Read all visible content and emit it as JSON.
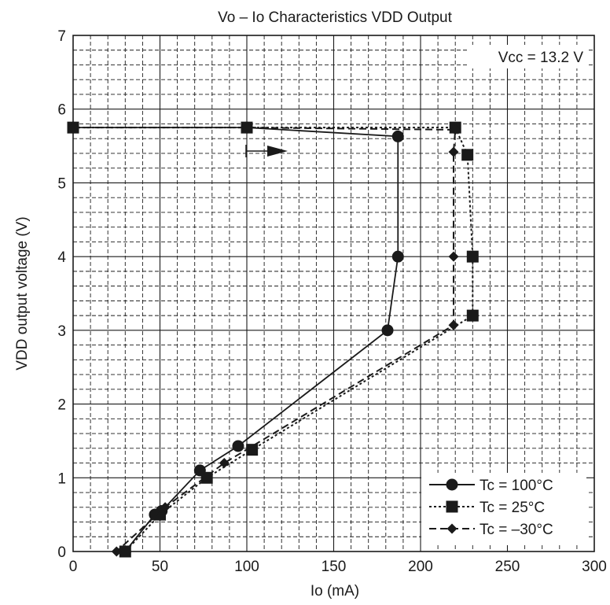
{
  "chart_data": {
    "type": "line",
    "title": "Vo – Io Characteristics   VDD Output",
    "xlabel": "Io   (mA)",
    "ylabel": "VDD output voltage   (V)",
    "xlim": [
      0,
      300
    ],
    "ylim": [
      0,
      7
    ],
    "x_ticks": [
      "0",
      "50",
      "100",
      "150",
      "200",
      "250",
      "300"
    ],
    "y_ticks": [
      "0",
      "1",
      "2",
      "3",
      "4",
      "5",
      "6",
      "7"
    ],
    "grid": true,
    "legend_position": "bottom-right",
    "annotations": [
      {
        "text": "Vcc = 13.2 V"
      }
    ],
    "series": [
      {
        "name": "Tc = 100°C",
        "line_style": "solid",
        "marker": "circle",
        "points": [
          [
            0,
            5.75
          ],
          [
            100,
            5.75
          ],
          [
            187,
            5.63
          ],
          [
            187,
            4.0
          ],
          [
            181,
            3.0
          ],
          [
            95,
            1.43
          ],
          [
            73,
            1.1
          ],
          [
            51,
            0.55
          ],
          [
            47,
            0.5
          ],
          [
            30,
            0.0
          ]
        ]
      },
      {
        "name": "Tc = 25°C",
        "line_style": "dotted",
        "marker": "square",
        "points": [
          [
            0,
            5.75
          ],
          [
            100,
            5.75
          ],
          [
            220,
            5.75
          ],
          [
            227,
            5.38
          ],
          [
            230,
            4.0
          ],
          [
            230,
            3.2
          ],
          [
            103,
            1.38
          ],
          [
            77,
            1.0
          ],
          [
            50,
            0.5
          ],
          [
            30,
            0.0
          ]
        ]
      },
      {
        "name": "Tc = –30°C",
        "line_style": "dashed",
        "marker": "diamond",
        "points": [
          [
            0,
            5.75
          ],
          [
            100,
            5.75
          ],
          [
            220,
            5.72
          ],
          [
            219,
            5.42
          ],
          [
            219,
            4.0
          ],
          [
            219,
            3.07
          ],
          [
            87,
            1.2
          ],
          [
            53,
            0.6
          ],
          [
            25,
            0.0
          ]
        ]
      }
    ]
  }
}
